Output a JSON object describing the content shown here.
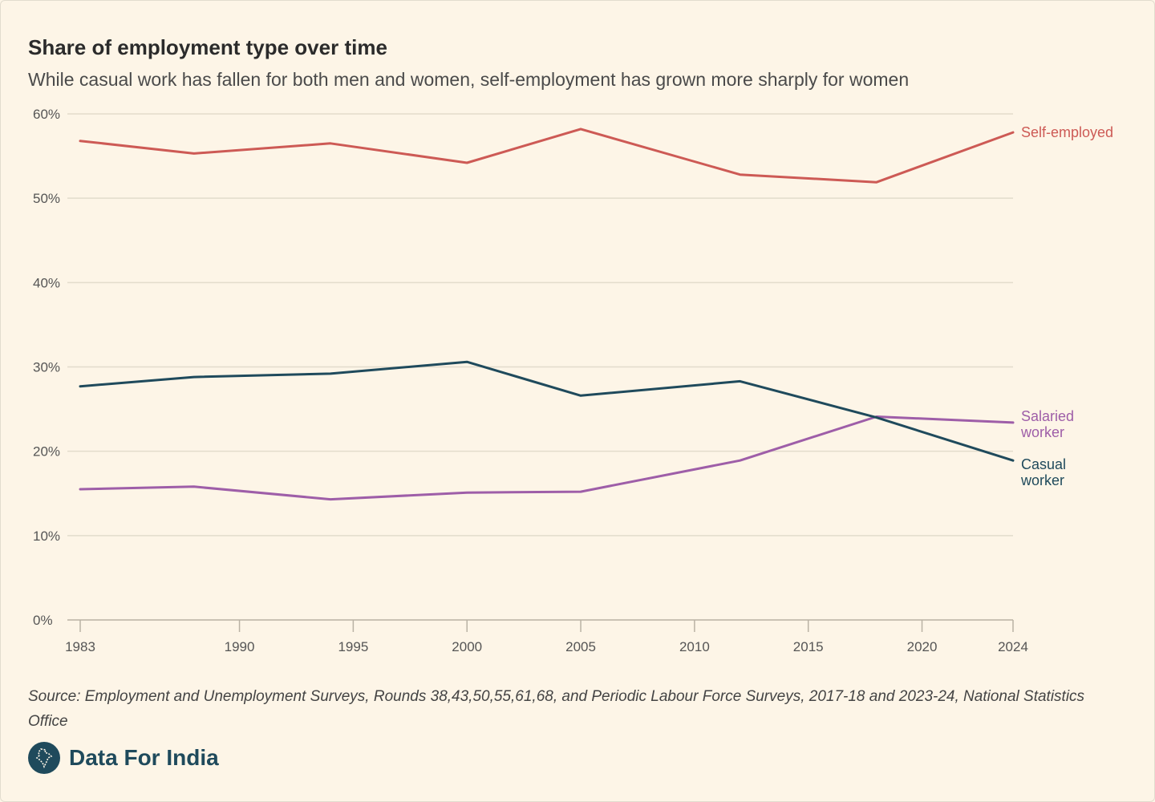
{
  "header": {
    "title": "Share of employment type over time",
    "subtitle": "While casual work has fallen for both men and women, self-employment has grown more sharply for women"
  },
  "footer": {
    "source": "Source: Employment and Unemployment Surveys, Rounds 38,43,50,55,61,68, and Periodic Labour Force Surveys, 2017-18 and 2023-24, National Statistics Office",
    "brand": "Data For India",
    "brand_color": "#1f4a5c"
  },
  "chart_data": {
    "type": "line",
    "x": [
      1983,
      1988,
      1994,
      2000,
      2005,
      2012,
      2018,
      2024
    ],
    "xlim": [
      1983,
      2024
    ],
    "xticks": [
      1983,
      1990,
      1995,
      2000,
      2005,
      2010,
      2015,
      2020,
      2024
    ],
    "ylim": [
      0,
      60
    ],
    "yticks": [
      0,
      10,
      20,
      30,
      40,
      50,
      60
    ],
    "ytick_suffix": "%",
    "grid": true,
    "legend": "direct labels at right end",
    "series": [
      {
        "name": "Self-employed",
        "label_lines": [
          "Self-employed"
        ],
        "color": "#cd5a55",
        "values": [
          56.8,
          55.3,
          56.5,
          54.2,
          58.2,
          52.8,
          51.9,
          57.8
        ]
      },
      {
        "name": "Salaried worker",
        "label_lines": [
          "Salaried",
          "worker"
        ],
        "color": "#9e5ea8",
        "values": [
          15.5,
          15.8,
          14.3,
          15.1,
          15.2,
          18.9,
          24.1,
          23.4
        ]
      },
      {
        "name": "Casual worker",
        "label_lines": [
          "Casual",
          "worker"
        ],
        "color": "#1f4a5c",
        "values": [
          27.7,
          28.8,
          29.2,
          30.6,
          26.6,
          28.3,
          24.0,
          18.9
        ]
      }
    ]
  }
}
